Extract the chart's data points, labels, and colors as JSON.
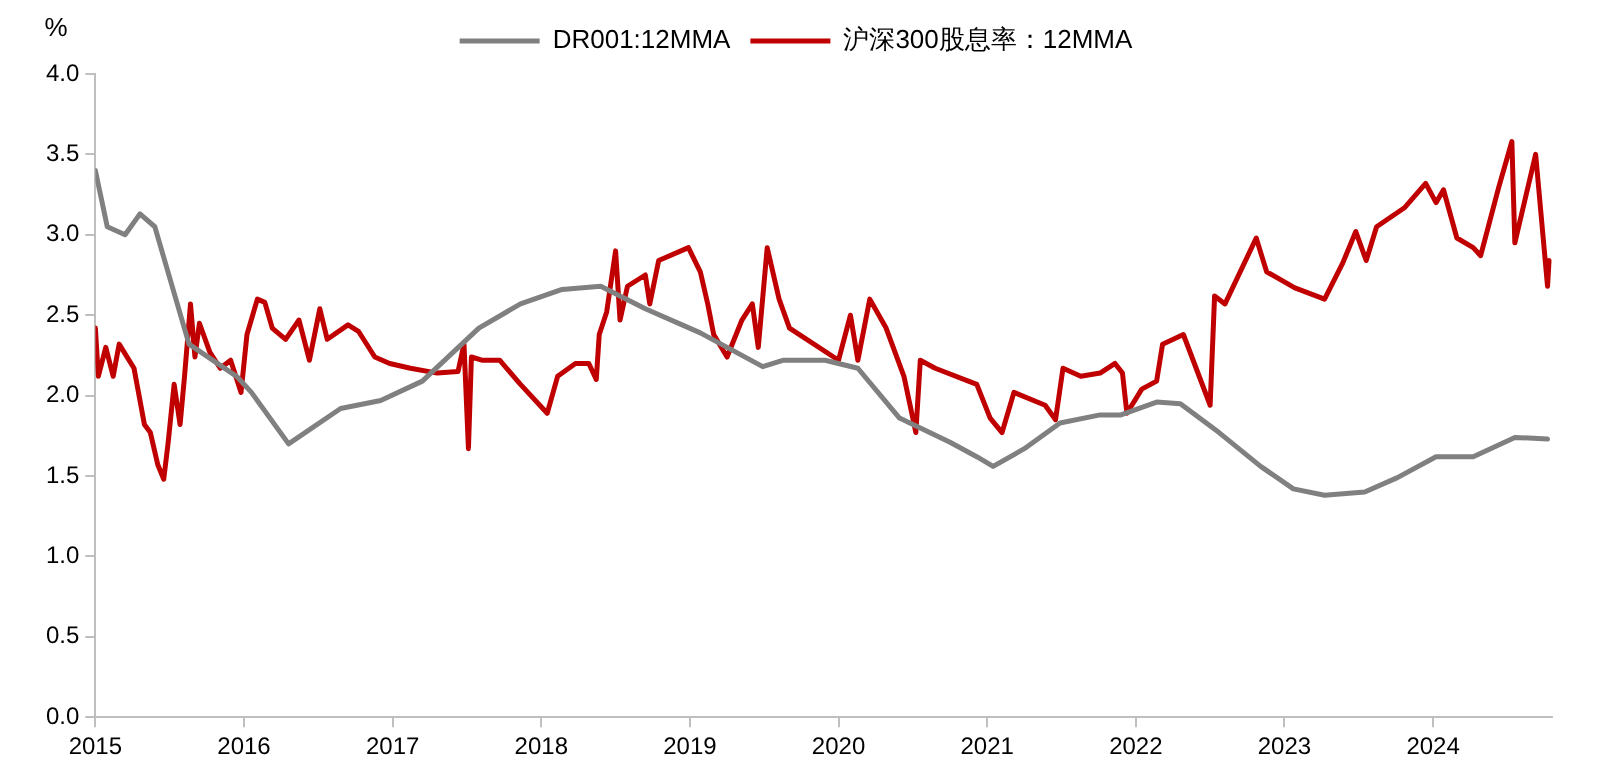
{
  "chart_data": {
    "type": "line",
    "ylabel": "%",
    "xlim": [
      2015,
      2024.8
    ],
    "xticks": [
      2015,
      2016,
      2017,
      2018,
      2019,
      2020,
      2021,
      2022,
      2023,
      2024
    ],
    "ylim": [
      0,
      4
    ],
    "yticks": [
      {
        "value": 0,
        "label": "0.0"
      },
      {
        "value": 0.5,
        "label": "0.5"
      },
      {
        "value": 1,
        "label": "1.0"
      },
      {
        "value": 1.5,
        "label": "1.5"
      },
      {
        "value": 2,
        "label": "2.0"
      },
      {
        "value": 2.5,
        "label": "2.5"
      },
      {
        "value": 3,
        "label": "3.0"
      },
      {
        "value": 3.5,
        "label": "3.5"
      },
      {
        "value": 4,
        "label": "4.0"
      }
    ],
    "grid": false,
    "legend": "top",
    "marker": "none",
    "line_style": "solid",
    "series": [
      {
        "name": "DR001:12MMA",
        "color": "#808080",
        "x": [
          2015,
          2015.08,
          2015.2,
          2015.3,
          2015.4,
          2015.63,
          2015.95,
          2016.05,
          2016.3,
          2016.65,
          2016.92,
          2017.2,
          2017.58,
          2017.86,
          2018.14,
          2018.4,
          2018.7,
          2019.07,
          2019.49,
          2019.63,
          2019.91,
          2020.13,
          2020.41,
          2020.75,
          2020.93,
          2021.04,
          2021.25,
          2021.49,
          2021.76,
          2021.9,
          2022.14,
          2022.3,
          2022.56,
          2022.84,
          2023.06,
          2023.27,
          2023.54,
          2023.76,
          2024.02,
          2024.27,
          2024.55,
          2024.77
        ],
        "values": [
          3.4,
          3.05,
          3.0,
          3.13,
          3.05,
          2.32,
          2.12,
          2.02,
          1.7,
          1.92,
          1.97,
          2.09,
          2.42,
          2.57,
          2.66,
          2.68,
          2.54,
          2.39,
          2.18,
          2.22,
          2.22,
          2.17,
          1.86,
          1.71,
          1.62,
          1.56,
          1.67,
          1.83,
          1.88,
          1.88,
          1.96,
          1.95,
          1.77,
          1.56,
          1.42,
          1.38,
          1.4,
          1.49,
          1.62,
          1.62,
          1.74,
          1.73
        ]
      },
      {
        "name": "沪深300股息率：12MMA",
        "color": "#c00000",
        "x": [
          2015,
          2015.02,
          2015.07,
          2015.12,
          2015.16,
          2015.26,
          2015.33,
          2015.37,
          2015.42,
          2015.46,
          2015.49,
          2015.53,
          2015.57,
          2015.6,
          2015.64,
          2015.67,
          2015.7,
          2015.77,
          2015.84,
          2015.91,
          2015.98,
          2016.02,
          2016.09,
          2016.14,
          2016.19,
          2016.28,
          2016.37,
          2016.44,
          2016.51,
          2016.56,
          2016.7,
          2016.77,
          2016.88,
          2016.98,
          2017.12,
          2017.3,
          2017.44,
          2017.48,
          2017.51,
          2017.53,
          2017.6,
          2017.72,
          2017.86,
          2018.04,
          2018.11,
          2018.23,
          2018.32,
          2018.37,
          2018.39,
          2018.44,
          2018.5,
          2018.53,
          2018.58,
          2018.7,
          2018.73,
          2018.79,
          2018.99,
          2019.07,
          2019.12,
          2019.16,
          2019.25,
          2019.35,
          2019.42,
          2019.46,
          2019.52,
          2019.6,
          2019.67,
          2020.0,
          2020.08,
          2020.13,
          2020.21,
          2020.32,
          2020.44,
          2020.52,
          2020.55,
          2020.65,
          2020.93,
          2021.02,
          2021.1,
          2021.18,
          2021.39,
          2021.46,
          2021.51,
          2021.63,
          2021.76,
          2021.86,
          2021.91,
          2021.94,
          2022.04,
          2022.14,
          2022.18,
          2022.32,
          2022.5,
          2022.53,
          2022.6,
          2022.81,
          2022.88,
          2023.07,
          2023.27,
          2023.39,
          2023.48,
          2023.55,
          2023.62,
          2023.81,
          2023.95,
          2024.02,
          2024.07,
          2024.16,
          2024.27,
          2024.32,
          2024.44,
          2024.53,
          2024.55,
          2024.69,
          2024.77,
          2024.78
        ],
        "values": [
          2.42,
          2.12,
          2.3,
          2.12,
          2.32,
          2.17,
          1.82,
          1.77,
          1.57,
          1.48,
          1.71,
          2.07,
          1.82,
          2.12,
          2.57,
          2.24,
          2.45,
          2.27,
          2.17,
          2.22,
          2.02,
          2.38,
          2.6,
          2.58,
          2.42,
          2.35,
          2.47,
          2.22,
          2.54,
          2.35,
          2.44,
          2.4,
          2.24,
          2.2,
          2.17,
          2.14,
          2.15,
          2.32,
          1.67,
          2.24,
          2.22,
          2.22,
          2.07,
          1.89,
          2.12,
          2.2,
          2.2,
          2.1,
          2.38,
          2.52,
          2.9,
          2.47,
          2.68,
          2.75,
          2.57,
          2.84,
          2.92,
          2.77,
          2.57,
          2.38,
          2.24,
          2.47,
          2.57,
          2.3,
          2.92,
          2.6,
          2.42,
          2.22,
          2.5,
          2.22,
          2.6,
          2.42,
          2.12,
          1.77,
          2.22,
          2.17,
          2.07,
          1.86,
          1.77,
          2.02,
          1.94,
          1.85,
          2.17,
          2.12,
          2.14,
          2.2,
          2.14,
          1.89,
          2.04,
          2.09,
          2.32,
          2.38,
          1.94,
          2.62,
          2.57,
          2.98,
          2.77,
          2.67,
          2.6,
          2.82,
          3.02,
          2.84,
          3.05,
          3.17,
          3.32,
          3.2,
          3.28,
          2.98,
          2.92,
          2.87,
          3.29,
          3.58,
          2.95,
          3.5,
          2.68,
          2.84
        ]
      }
    ]
  }
}
